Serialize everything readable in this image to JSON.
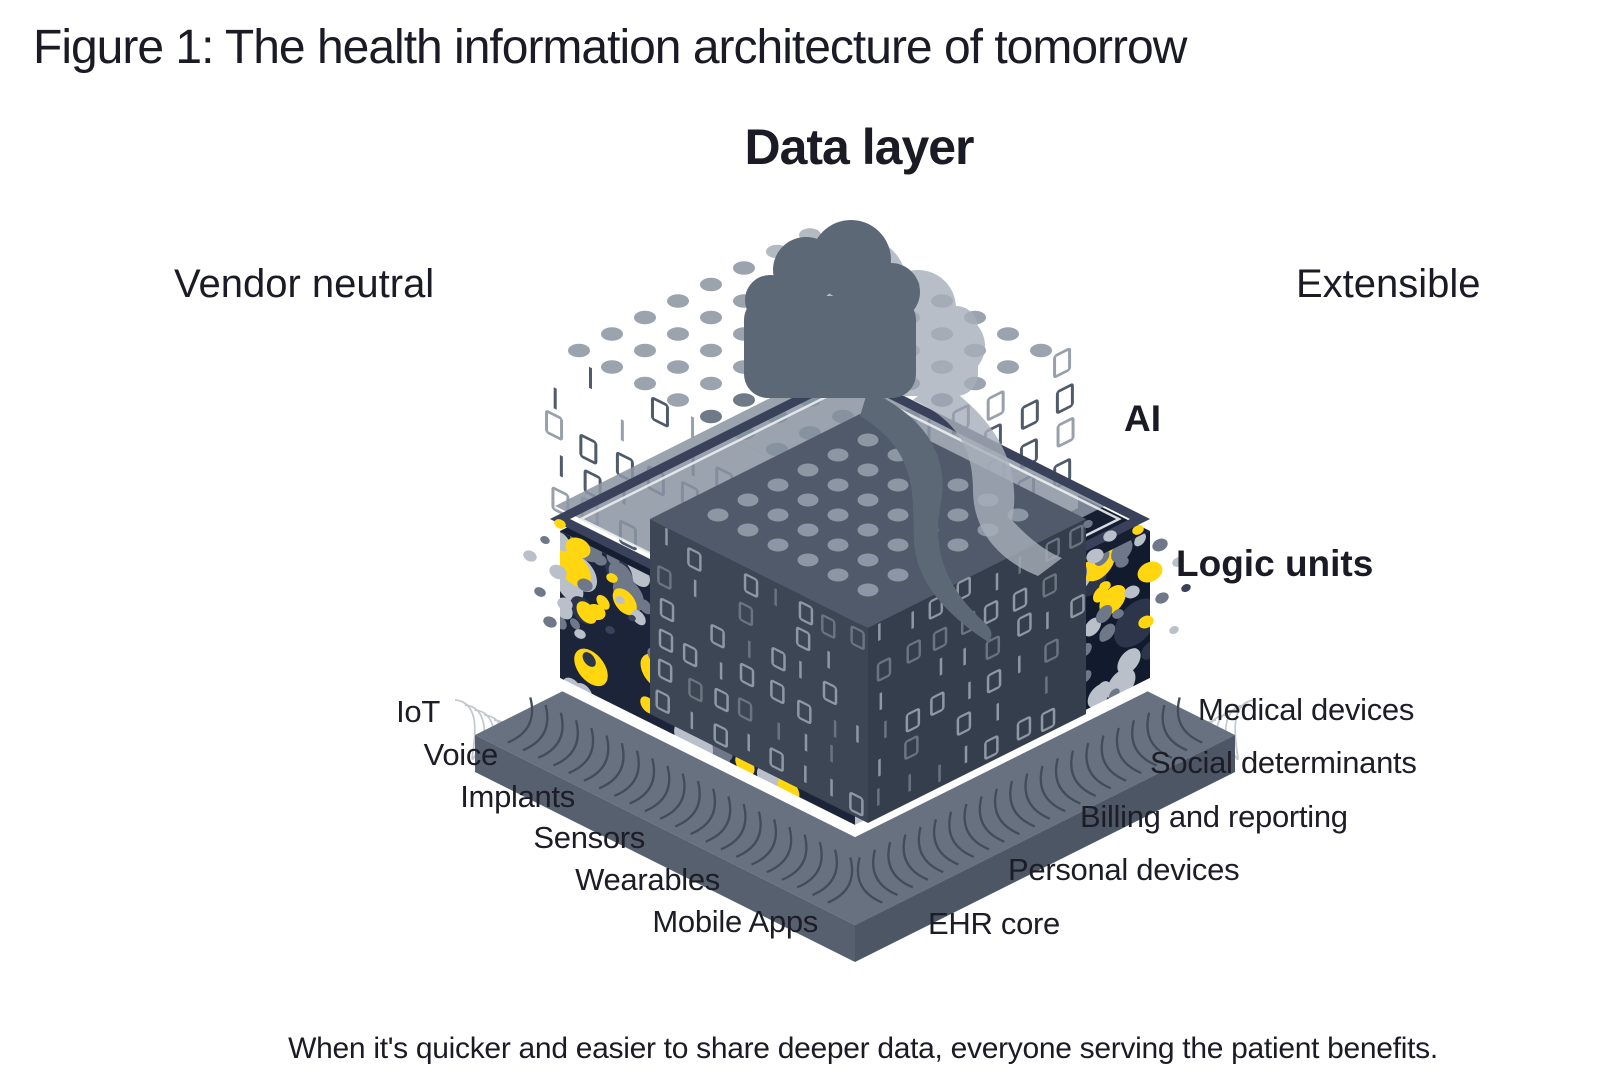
{
  "figure": {
    "title": "Figure 1: The health information architecture of tomorrow",
    "caption": "When it's quicker and easier to share deeper data, everyone serving the patient benefits."
  },
  "diagram": {
    "data_layer_label": "Data layer",
    "left_property": "Vendor neutral",
    "right_property": "Extensible",
    "ai_label": "AI",
    "logic_units_label": "Logic units",
    "left_inputs": [
      "IoT",
      "Voice",
      "Implants",
      "Sensors",
      "Wearables",
      "Mobile Apps"
    ],
    "right_inputs": [
      "Medical devices",
      "Social determinants",
      "Billing and reporting",
      "Personal devices",
      "EHR core"
    ]
  },
  "colors": {
    "accent_yellow": "#ffd60f",
    "navy_top": "#161e32",
    "navy_left": "#1b2439",
    "navy_right": "#121a2d",
    "slab": "#68717f",
    "slab_side": "#57606f",
    "slab_side_dark": "#4d5665",
    "pin_line": "#434c5c",
    "wire": "#c3c8cf",
    "dot_gray": "#9aa3ae",
    "dot_gray_light": "#b3bac2",
    "dot_gray_dark": "#6f7a88",
    "dot_light": "#b9c0c9",
    "dot_mid": "#6e7889",
    "glyph_dark": "#4f5a6a",
    "glyph_light": "#97a0ab",
    "inner_top": "#505a6b",
    "inner_left": "#3d4655",
    "inner_right": "#353e4c",
    "inner_glyph": "#8e98a5",
    "plane": "#8b95a2",
    "frame": "#39425a",
    "cloud_dark": "#5d6877",
    "cloud_light": "#a7afba",
    "text": "#1b1b26"
  }
}
